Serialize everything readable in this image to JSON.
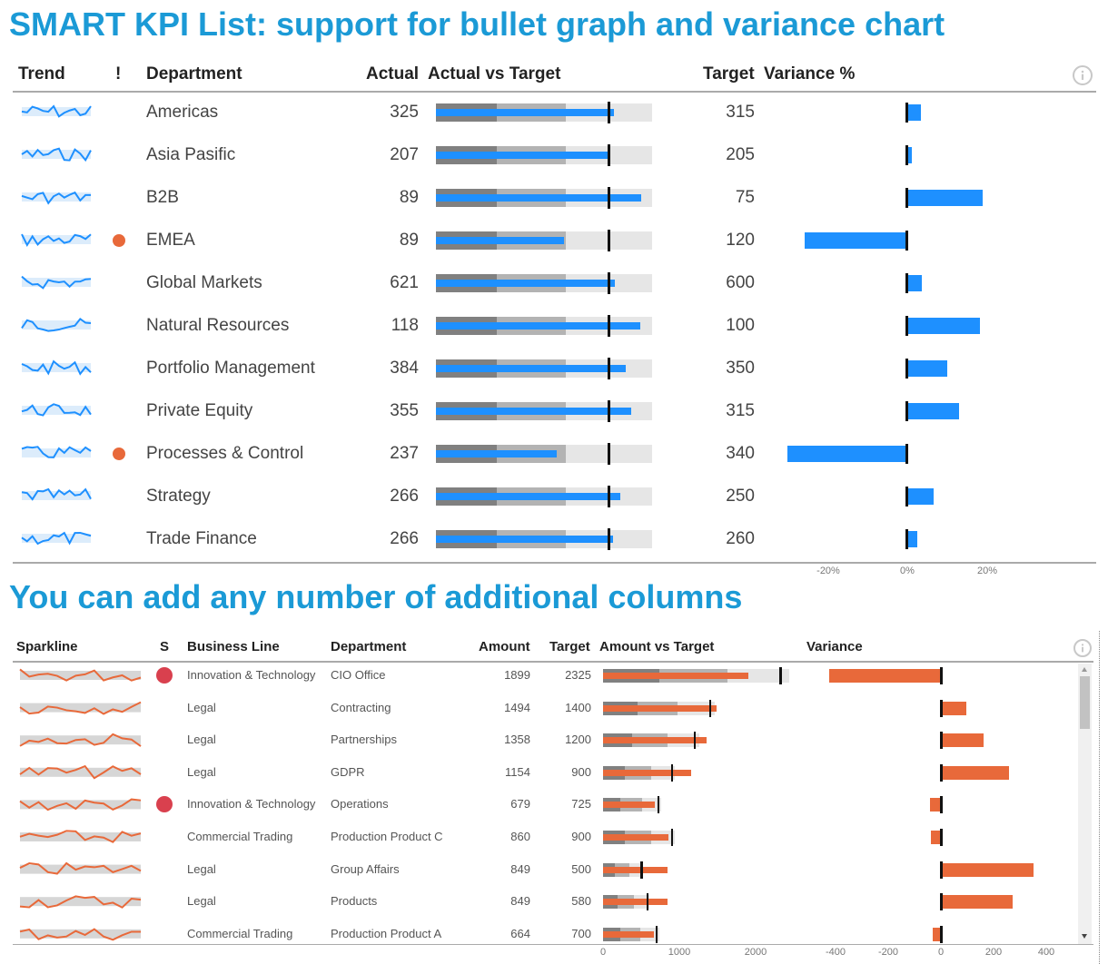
{
  "title1": "SMART KPI List: support for bullet graph and variance chart",
  "title2": "You can add any number of additional columns",
  "colors": {
    "accent_blue": "#1e90ff",
    "accent_orange": "#e8693a",
    "title": "#1b9ad6",
    "alert_dot_orange": "#e8693a",
    "alert_dot_red": "#d9404e"
  },
  "kpi_table": {
    "headers": {
      "trend": "Trend",
      "alert": "!",
      "department": "Department",
      "actual": "Actual",
      "bullet": "Actual vs Target",
      "target": "Target",
      "variance": "Variance %"
    },
    "info_icon": "info-icon",
    "rows": [
      {
        "department": "Americas",
        "actual": 325,
        "target": 315,
        "alert": false
      },
      {
        "department": "Asia Pasific",
        "actual": 207,
        "target": 205,
        "alert": false
      },
      {
        "department": "B2B",
        "actual": 89,
        "target": 75,
        "alert": false
      },
      {
        "department": "EMEA",
        "actual": 89,
        "target": 120,
        "alert": true
      },
      {
        "department": "Global Markets",
        "actual": 621,
        "target": 600,
        "alert": false
      },
      {
        "department": "Natural Resources",
        "actual": 118,
        "target": 100,
        "alert": false
      },
      {
        "department": "Portfolio Management",
        "actual": 384,
        "target": 350,
        "alert": false
      },
      {
        "department": "Private Equity",
        "actual": 355,
        "target": 315,
        "alert": false
      },
      {
        "department": "Processes & Control",
        "actual": 237,
        "target": 340,
        "alert": true
      },
      {
        "department": "Strategy",
        "actual": 266,
        "target": 250,
        "alert": false
      },
      {
        "department": "Trade Finance",
        "actual": 266,
        "target": 260,
        "alert": false
      }
    ],
    "variance_axis": [
      "-20%",
      "0%",
      "20%"
    ]
  },
  "detail_table": {
    "headers": {
      "sparkline": "Sparkline",
      "status": "S",
      "business_line": "Business Line",
      "department": "Department",
      "amount": "Amount",
      "target": "Target",
      "bullet": "Amount vs Target",
      "variance": "Variance"
    },
    "info_icon": "info-icon",
    "rows": [
      {
        "business_line": "Innovation & Technology",
        "department": "CIO Office",
        "amount": 1899,
        "target": 2325,
        "status": true
      },
      {
        "business_line": "Legal",
        "department": "Contracting",
        "amount": 1494,
        "target": 1400,
        "status": false
      },
      {
        "business_line": "Legal",
        "department": "Partnerships",
        "amount": 1358,
        "target": 1200,
        "status": false
      },
      {
        "business_line": "Legal",
        "department": "GDPR",
        "amount": 1154,
        "target": 900,
        "status": false
      },
      {
        "business_line": "Innovation & Technology",
        "department": "Operations",
        "amount": 679,
        "target": 725,
        "status": true
      },
      {
        "business_line": "Commercial Trading",
        "department": "Production Product C",
        "amount": 860,
        "target": 900,
        "status": false
      },
      {
        "business_line": "Legal",
        "department": "Group Affairs",
        "amount": 849,
        "target": 500,
        "status": false
      },
      {
        "business_line": "Legal",
        "department": "Products",
        "amount": 849,
        "target": 580,
        "status": false
      },
      {
        "business_line": "Commercial Trading",
        "department": "Production Product A",
        "amount": 664,
        "target": 700,
        "status": false
      }
    ],
    "bullet_axis": [
      "0",
      "1000",
      "2000"
    ],
    "variance_axis": [
      "-400",
      "-200",
      "0",
      "200",
      "400"
    ]
  }
}
